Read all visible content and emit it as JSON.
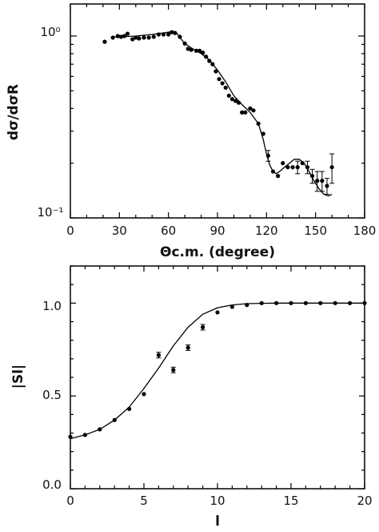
{
  "chart_data": [
    {
      "type": "scatter",
      "yscale": "log",
      "xlabel": "Θc.m. (degree)",
      "ylabel": "dσ/dσR",
      "xlim": [
        0,
        180
      ],
      "ylim": [
        0.1,
        1.5
      ],
      "x_ticks": [
        "0",
        "30",
        "60",
        "90",
        "120",
        "150",
        "180"
      ],
      "y_ticks": [
        "10⁰",
        "10⁻¹"
      ],
      "grid": false,
      "series": [
        {
          "kind": "points",
          "x": [
            21,
            26,
            29,
            31,
            33,
            35,
            38,
            40,
            42,
            45,
            48,
            51,
            54,
            57,
            60,
            62,
            64,
            67,
            70,
            72,
            74,
            77,
            79,
            81,
            83,
            85,
            87,
            89,
            91,
            93,
            95,
            97,
            99,
            101,
            103,
            105,
            107,
            110,
            112,
            115,
            118,
            121,
            124,
            127,
            130,
            133,
            136,
            139,
            142,
            145,
            148,
            151,
            154,
            157,
            160
          ],
          "y": [
            0.93,
            0.98,
            1.0,
            0.99,
            1.0,
            1.03,
            0.96,
            0.98,
            0.97,
            0.98,
            0.98,
            0.99,
            1.02,
            1.02,
            1.02,
            1.05,
            1.04,
            0.99,
            0.91,
            0.85,
            0.84,
            0.83,
            0.83,
            0.81,
            0.77,
            0.73,
            0.7,
            0.64,
            0.58,
            0.55,
            0.52,
            0.47,
            0.45,
            0.44,
            0.43,
            0.38,
            0.38,
            0.4,
            0.39,
            0.33,
            0.29,
            0.22,
            0.18,
            0.17,
            0.2,
            0.19,
            0.19,
            0.19,
            0.2,
            0.19,
            0.17,
            0.16,
            0.16,
            0.15,
            0.19
          ],
          "err": [
            0,
            0,
            0,
            0,
            0,
            0,
            0,
            0,
            0,
            0,
            0,
            0,
            0,
            0,
            0,
            0,
            0,
            0,
            0,
            0,
            0,
            0,
            0,
            0,
            0,
            0,
            0,
            0,
            0,
            0,
            0,
            0,
            0,
            0,
            0,
            0,
            0,
            0,
            0,
            0,
            0,
            0.015,
            0,
            0,
            0,
            0,
            0,
            0.015,
            0,
            0.015,
            0.015,
            0.02,
            0.02,
            0.015,
            0.035
          ]
        },
        {
          "kind": "curve",
          "x": [
            25,
            30,
            40,
            50,
            60,
            63,
            65,
            67,
            70,
            75,
            80,
            85,
            90,
            95,
            100,
            105,
            110,
            115,
            118,
            120,
            122,
            124,
            126,
            128,
            131,
            134,
            137,
            140,
            143,
            146,
            149,
            152,
            155,
            158,
            160
          ],
          "y": [
            0.99,
            0.99,
            1.0,
            1.02,
            1.05,
            1.06,
            1.04,
            0.98,
            0.91,
            0.85,
            0.8,
            0.74,
            0.65,
            0.56,
            0.47,
            0.42,
            0.38,
            0.33,
            0.27,
            0.225,
            0.195,
            0.18,
            0.175,
            0.18,
            0.19,
            0.2,
            0.21,
            0.21,
            0.2,
            0.18,
            0.16,
            0.145,
            0.135,
            0.132,
            0.135
          ]
        }
      ]
    },
    {
      "type": "scatter",
      "xlabel": "l",
      "ylabel": "|Sl|",
      "xlim": [
        0,
        20
      ],
      "ylim": [
        0,
        1.2
      ],
      "x_ticks": [
        "0",
        "5",
        "10",
        "15",
        "20"
      ],
      "y_ticks": [
        "0.0",
        "0.5",
        "1.0"
      ],
      "grid": false,
      "series": [
        {
          "kind": "points",
          "x": [
            0,
            1,
            2,
            3,
            4,
            5,
            6,
            7,
            8,
            9,
            10,
            11,
            12,
            13,
            14,
            15,
            16,
            17,
            18,
            19,
            20
          ],
          "y": [
            0.28,
            0.29,
            0.32,
            0.37,
            0.43,
            0.51,
            0.72,
            0.64,
            0.76,
            0.87,
            0.95,
            0.98,
            0.99,
            1.0,
            1.0,
            1.0,
            1.0,
            1.0,
            1.0,
            1.0,
            1.0
          ],
          "err": [
            0,
            0,
            0,
            0,
            0,
            0,
            0.015,
            0.015,
            0.015,
            0.015,
            0,
            0,
            0,
            0,
            0,
            0,
            0,
            0,
            0,
            0,
            0
          ]
        },
        {
          "kind": "curve",
          "x": [
            0,
            1,
            2,
            3,
            4,
            5,
            6,
            7,
            8,
            9,
            10,
            11,
            12,
            13,
            14,
            16,
            18,
            20
          ],
          "y": [
            0.27,
            0.29,
            0.32,
            0.37,
            0.44,
            0.54,
            0.65,
            0.77,
            0.87,
            0.94,
            0.975,
            0.99,
            0.997,
            0.999,
            1.0,
            1.0,
            1.0,
            1.0
          ]
        }
      ]
    }
  ]
}
